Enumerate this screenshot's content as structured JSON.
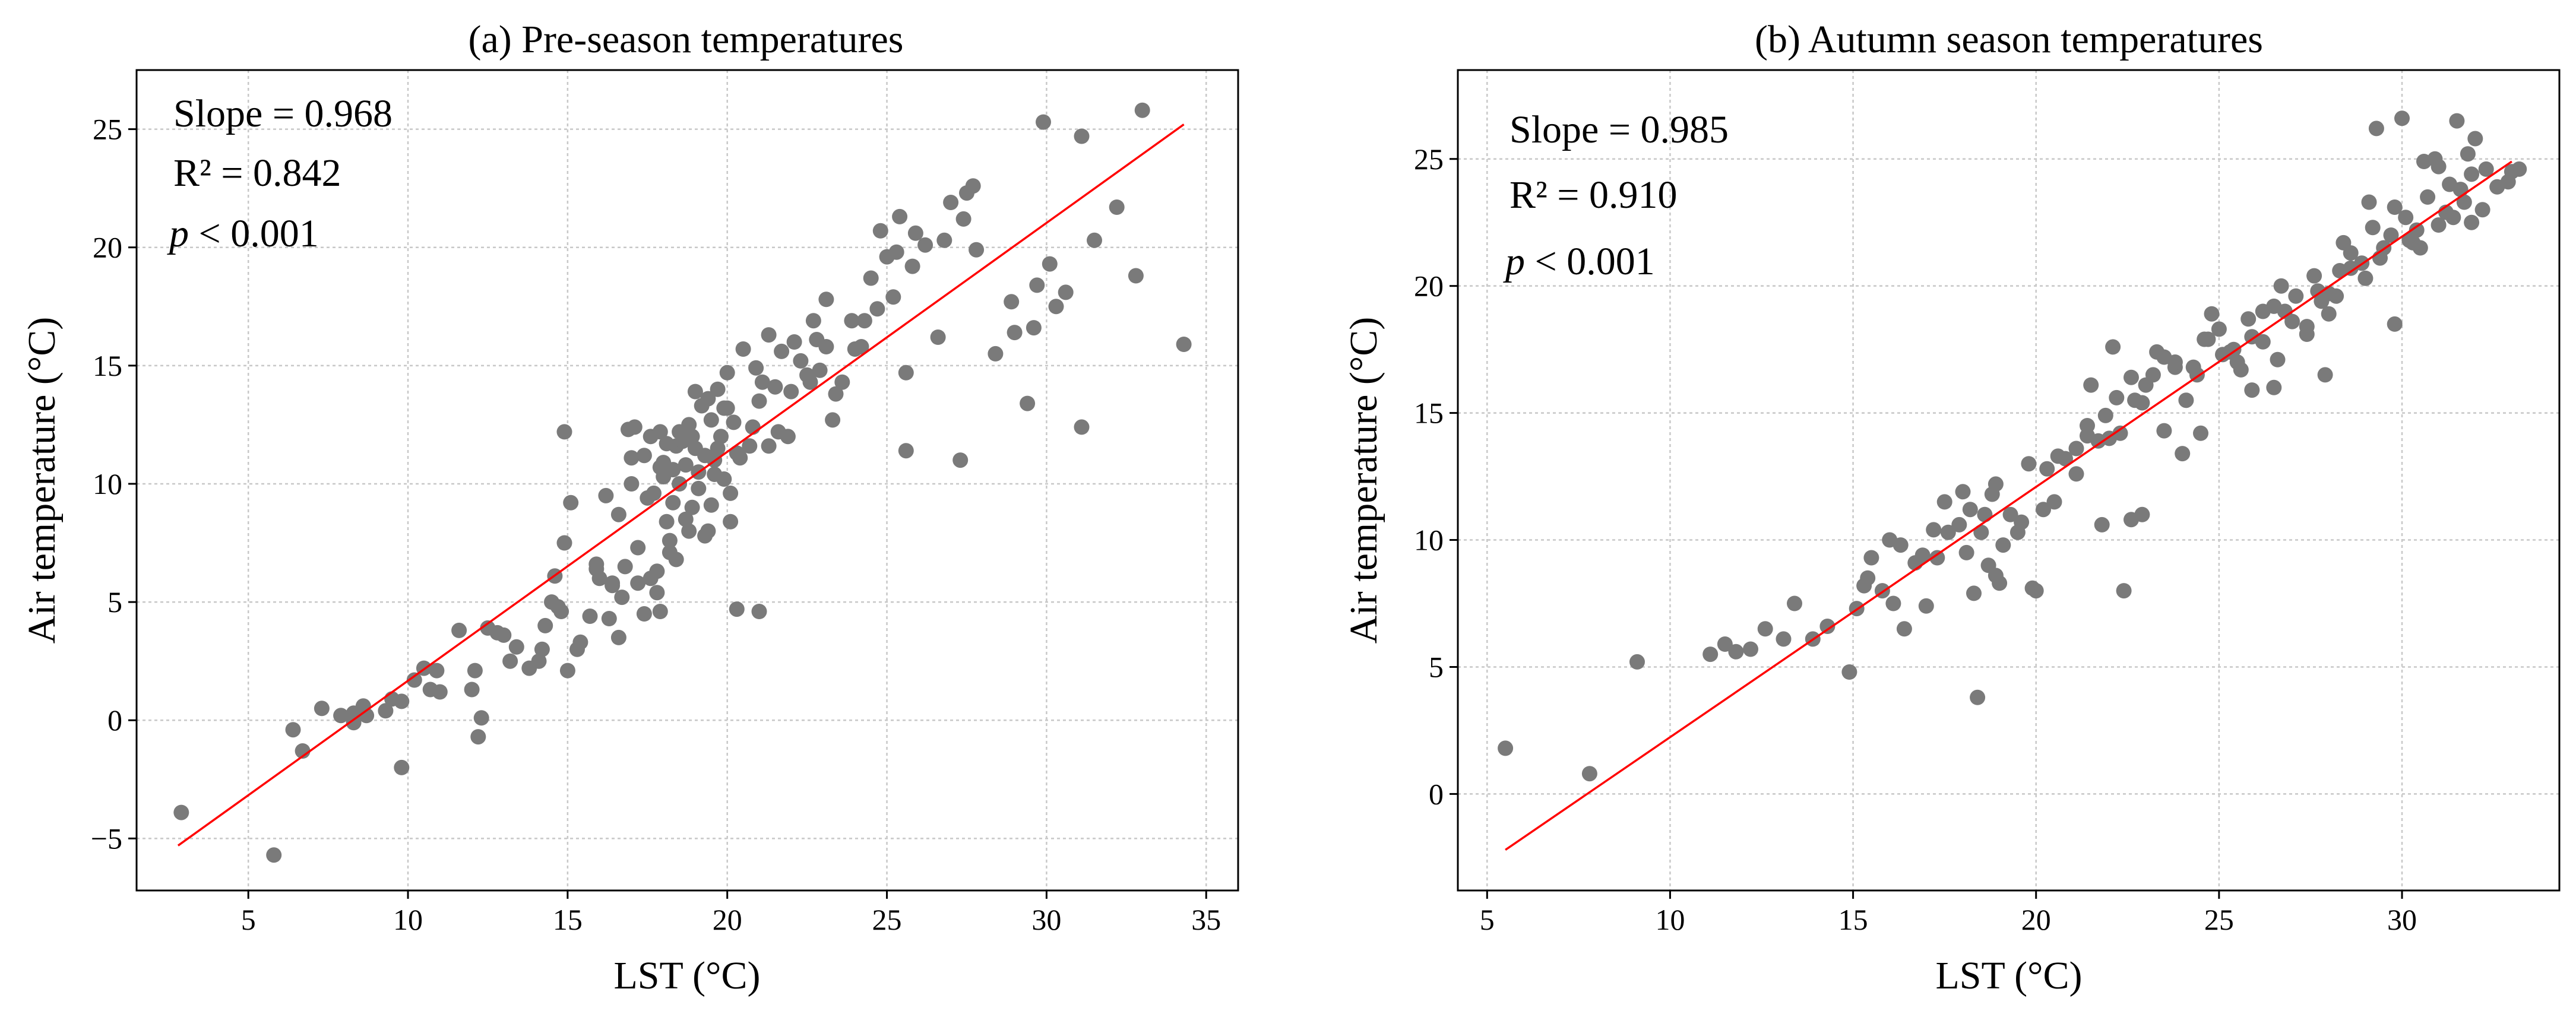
{
  "chart_data": [
    {
      "type": "scatter",
      "title": "(a) Pre-season temperatures",
      "xlabel": "LST (°C)",
      "ylabel": "Air temperature (°C)",
      "xlim": [
        1.5,
        36.0
      ],
      "ylim": [
        -7.2,
        27.5
      ],
      "xticks": [
        5,
        10,
        15,
        20,
        25,
        30,
        35
      ],
      "yticks": [
        -5,
        0,
        5,
        10,
        15,
        20,
        25
      ],
      "grid": true,
      "annotations": {
        "slope": "Slope = 0.968",
        "r2": "R² = 0.842",
        "p_italic": "p",
        "p_rest": " < 0.001"
      },
      "colors": {
        "points": "#7a7a7a",
        "fit_line": "#ff0000"
      },
      "fit_line": {
        "x": [
          2.8,
          34.3
        ],
        "y": [
          -5.3,
          25.2
        ]
      },
      "x": [
        2.9,
        5.8,
        6.4,
        6.7,
        7.3,
        7.9,
        8.3,
        8.6,
        8.3,
        9.3,
        9.8,
        10.2,
        10.5,
        10.7,
        11.0,
        12.1,
        12.0,
        12.3,
        12.2,
        12.8,
        13.2,
        14.2,
        14.3,
        14.5,
        14.8,
        14.9,
        14.9,
        15.1,
        15.3,
        15.7,
        15.9,
        16.0,
        16.2,
        16.4,
        16.6,
        16.8,
        16.9,
        17.0,
        17.1,
        17.2,
        17.4,
        17.6,
        17.7,
        17.8,
        17.9,
        18.0,
        18.1,
        18.2,
        18.3,
        18.4,
        18.5,
        18.6,
        18.7,
        18.8,
        18.9,
        19.0,
        19.1,
        19.2,
        19.3,
        19.4,
        19.5,
        19.6,
        19.7,
        19.8,
        19.9,
        20.0,
        20.1,
        20.2,
        20.3,
        20.5,
        20.7,
        20.9,
        21.1,
        21.3,
        21.5,
        21.7,
        21.9,
        22.1,
        22.3,
        22.5,
        22.7,
        22.9,
        23.1,
        23.3,
        23.6,
        23.9,
        24.2,
        24.5,
        24.8,
        25.0,
        25.2,
        25.4,
        25.6,
        25.8,
        26.2,
        26.6,
        27.0,
        27.4,
        27.8,
        28.4,
        29.0,
        29.4,
        29.7,
        30.1,
        30.6,
        31.1,
        31.5,
        32.2,
        32.8,
        33.0,
        34.3,
        14.6,
        14.7,
        15.0,
        15.4,
        15.9,
        16.3,
        16.7,
        17.2,
        17.5,
        17.6,
        18.1,
        18.3,
        18.9,
        19.1,
        19.4,
        19.9,
        20.4,
        20.8,
        21.0,
        21.6,
        22.0,
        22.6,
        23.4,
        24.0,
        24.7,
        25.3,
        25.9,
        26.8,
        27.7,
        28.9,
        29.9,
        31.1,
        16.6,
        17.4,
        17.9,
        18.4,
        18.8,
        19.3,
        19.6,
        20.0,
        12.5,
        13.4,
        13.8,
        14.1,
        13.0,
        11.6,
        9.8,
        10.9,
        8.7,
        9.5,
        20.3,
        21.0,
        17.9,
        18.0,
        18.5,
        19.7,
        18.2,
        17.0,
        22.8,
        25.6,
        27.3,
        27.5,
        29.6,
        30.3,
        24.3,
        23.1,
        21.3,
        16.4,
        17.8,
        19.5,
        18.7,
        19.0,
        20.1
      ],
      "y": [
        -3.9,
        -5.7,
        -0.4,
        -1.3,
        0.5,
        0.2,
        -0.1,
        0.6,
        0.3,
        0.4,
        0.8,
        1.7,
        2.2,
        1.3,
        1.2,
        2.1,
        1.3,
        0.1,
        -0.7,
        3.7,
        2.5,
        3.0,
        4.0,
        5.0,
        4.6,
        7.5,
        12.2,
        9.2,
        3.0,
        4.4,
        6.4,
        6.0,
        9.5,
        5.7,
        8.7,
        6.5,
        12.3,
        10.0,
        12.4,
        7.3,
        11.2,
        12.0,
        9.6,
        5.4,
        12.2,
        10.3,
        11.7,
        7.6,
        9.2,
        11.6,
        10.0,
        11.8,
        10.8,
        12.5,
        12.0,
        11.5,
        9.8,
        13.3,
        11.2,
        8.0,
        12.7,
        10.4,
        11.5,
        12.0,
        13.2,
        14.7,
        9.6,
        12.6,
        11.3,
        15.7,
        11.6,
        14.9,
        14.3,
        16.3,
        14.1,
        15.6,
        12.0,
        16.0,
        15.2,
        14.6,
        16.9,
        14.8,
        17.8,
        12.7,
        14.3,
        16.9,
        15.8,
        18.7,
        20.7,
        19.6,
        17.9,
        21.3,
        14.7,
        19.2,
        20.1,
        16.2,
        21.9,
        21.2,
        19.9,
        15.5,
        16.4,
        13.4,
        18.4,
        19.3,
        18.1,
        12.4,
        20.3,
        21.7,
        18.8,
        25.8,
        15.9,
        6.1,
        4.8,
        2.1,
        3.3,
        6.6,
        4.3,
        5.2,
        5.8,
        9.4,
        6.0,
        8.4,
        10.6,
        9.0,
        10.5,
        13.6,
        10.2,
        11.1,
        12.4,
        13.5,
        12.2,
        13.9,
        14.3,
        13.8,
        15.7,
        17.4,
        19.8,
        20.6,
        20.3,
        22.6,
        17.7,
        25.3,
        24.7,
        3.5,
        4.5,
        4.6,
        6.8,
        8.0,
        7.8,
        11.0,
        13.2,
        3.9,
        3.1,
        2.2,
        2.5,
        3.6,
        3.8,
        -2.0,
        2.1,
        0.2,
        0.9,
        4.7,
        4.6,
        10.7,
        10.9,
        12.2,
        14.0,
        7.1,
        11.1,
        16.1,
        11.4,
        11.0,
        22.3,
        16.6,
        17.5,
        16.9,
        15.8,
        11.6,
        5.8,
        6.3,
        9.1,
        8.5,
        13.9,
        8.4
      ]
    },
    {
      "type": "scatter",
      "title": "(b) Autumn season temperatures",
      "xlabel": "LST (°C)",
      "ylabel": "Air temperature (°C)",
      "xlim": [
        4.2,
        34.3
      ],
      "ylim": [
        -3.8,
        28.5
      ],
      "xticks": [
        5,
        10,
        15,
        20,
        25,
        30
      ],
      "yticks": [
        0,
        5,
        10,
        15,
        20,
        25
      ],
      "grid": true,
      "annotations": {
        "slope": "Slope = 0.985",
        "r2": "R² = 0.910",
        "p_italic": "p",
        "p_rest": " < 0.001"
      },
      "colors": {
        "points": "#7a7a7a",
        "fit_line": "#ff0000"
      },
      "fit_line": {
        "x": [
          5.5,
          33.0
        ],
        "y": [
          -2.2,
          24.9
        ]
      },
      "x": [
        5.5,
        7.8,
        9.1,
        11.1,
        11.5,
        11.8,
        12.2,
        12.6,
        13.1,
        13.4,
        13.9,
        14.3,
        14.9,
        15.1,
        15.3,
        15.5,
        15.8,
        16.1,
        16.4,
        16.7,
        17.0,
        17.3,
        17.6,
        17.9,
        18.1,
        18.3,
        18.5,
        18.7,
        18.9,
        19.1,
        19.3,
        19.6,
        19.9,
        20.2,
        20.5,
        20.8,
        21.1,
        21.4,
        21.7,
        22.0,
        22.3,
        22.6,
        22.9,
        23.2,
        23.5,
        23.8,
        24.1,
        24.4,
        24.7,
        25.0,
        25.3,
        25.6,
        25.9,
        26.2,
        26.5,
        26.8,
        27.1,
        27.4,
        27.7,
        28.0,
        28.3,
        28.6,
        28.9,
        29.2,
        29.5,
        29.8,
        30.1,
        30.4,
        30.7,
        31.0,
        31.3,
        31.6,
        31.9,
        32.2,
        32.6,
        33.0,
        18.4,
        22.4,
        22.6,
        18.6,
        19.0,
        20.0,
        21.8,
        22.9,
        24.5,
        25.9,
        27.9,
        29.8,
        30.3,
        31.4,
        16.0,
        16.9,
        17.5,
        18.2,
        18.8,
        19.5,
        20.3,
        21.1,
        21.9,
        22.7,
        23.5,
        24.3,
        25.1,
        25.8,
        26.6,
        27.4,
        28.2,
        29.0,
        29.7,
        30.5,
        31.2,
        31.9,
        15.4,
        16.3,
        17.2,
        18.0,
        18.9,
        19.8,
        20.6,
        21.4,
        22.2,
        23.0,
        23.8,
        24.6,
        25.4,
        26.2,
        27.0,
        27.8,
        28.6,
        29.4,
        30.2,
        31.0,
        31.7,
        24.0,
        26.5,
        28.0,
        29.3,
        30.0,
        30.9,
        31.5,
        32.0,
        21.5,
        22.1,
        23.3,
        24.8,
        25.5,
        26.7,
        27.6,
        28.4,
        29.1,
        30.6,
        31.8,
        32.3,
        32.9,
        33.2
      ],
      "y": [
        1.8,
        0.8,
        5.2,
        5.5,
        5.9,
        5.6,
        5.7,
        6.5,
        6.1,
        7.5,
        6.1,
        6.6,
        4.8,
        7.3,
        8.2,
        9.3,
        8.0,
        7.5,
        6.5,
        9.1,
        7.4,
        9.3,
        10.3,
        10.6,
        9.5,
        7.9,
        10.3,
        9.0,
        8.6,
        9.8,
        11.0,
        10.7,
        8.1,
        11.2,
        11.5,
        13.2,
        12.6,
        14.1,
        13.9,
        14.0,
        14.2,
        16.4,
        15.4,
        16.5,
        14.3,
        16.8,
        15.5,
        16.5,
        17.9,
        18.3,
        17.4,
        16.7,
        18.0,
        17.8,
        19.2,
        19.0,
        19.6,
        18.4,
        19.8,
        19.7,
        20.6,
        21.3,
        20.9,
        22.3,
        21.5,
        23.1,
        22.7,
        22.2,
        23.5,
        24.7,
        24.0,
        23.8,
        24.4,
        23.0,
        23.9,
        24.5,
        3.8,
        8.0,
        10.8,
        11.0,
        8.3,
        8.0,
        10.6,
        11.0,
        14.2,
        15.9,
        16.5,
        18.5,
        21.7,
        22.7,
        10.0,
        9.4,
        11.5,
        11.2,
        11.8,
        10.3,
        12.8,
        13.6,
        14.9,
        15.5,
        17.2,
        16.8,
        17.3,
        18.7,
        17.1,
        18.1,
        19.6,
        20.3,
        22.0,
        21.5,
        22.9,
        22.5,
        8.5,
        9.8,
        10.4,
        11.9,
        12.2,
        13.0,
        13.3,
        14.5,
        15.6,
        16.1,
        17.0,
        17.9,
        17.5,
        19.0,
        18.6,
        19.4,
        20.7,
        21.1,
        21.8,
        22.4,
        23.3,
        13.4,
        16.0,
        18.9,
        26.2,
        26.6,
        25.0,
        26.5,
        25.8,
        16.1,
        17.6,
        17.4,
        18.9,
        17.0,
        20.0,
        20.4,
        21.7,
        23.3,
        24.9,
        25.2,
        24.6,
        24.1,
        24.6
      ]
    }
  ]
}
